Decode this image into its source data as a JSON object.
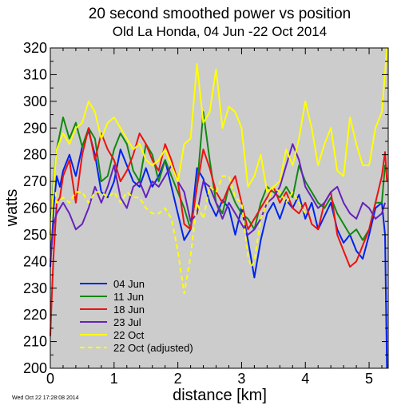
{
  "chart_data": {
    "type": "line",
    "title": "20 second smoothed power vs position",
    "subtitle": "Old La Honda, 04 Jun -22 Oct 2014",
    "xlabel": "distance [km]",
    "ylabel": "watts",
    "xlim": [
      0,
      5.3
    ],
    "ylim": [
      200,
      320
    ],
    "xticks": [
      "0",
      "1",
      "2",
      "3",
      "4",
      "5"
    ],
    "yticks": [
      "200",
      "210",
      "220",
      "230",
      "240",
      "250",
      "260",
      "270",
      "280",
      "290",
      "300",
      "310",
      "320"
    ],
    "background": "#cccccc",
    "grid": false,
    "legend_position": "bottom-left",
    "timestamp": "Wed Oct 22 17:28:08 2014",
    "series": [
      {
        "name": "04 Jun",
        "color": "#0022ee",
        "style": "solid",
        "x": [
          0,
          0.05,
          0.1,
          0.15,
          0.2,
          0.3,
          0.4,
          0.5,
          0.6,
          0.7,
          0.8,
          0.9,
          1.0,
          1.1,
          1.2,
          1.3,
          1.4,
          1.5,
          1.6,
          1.7,
          1.8,
          1.9,
          2.0,
          2.1,
          2.2,
          2.3,
          2.4,
          2.5,
          2.6,
          2.7,
          2.8,
          2.9,
          3.0,
          3.1,
          3.2,
          3.3,
          3.4,
          3.5,
          3.6,
          3.7,
          3.8,
          3.9,
          4.0,
          4.1,
          4.2,
          4.3,
          4.4,
          4.5,
          4.6,
          4.7,
          4.8,
          4.9,
          5.0,
          5.1,
          5.2,
          5.25,
          5.28
        ],
        "y": [
          238,
          260,
          272,
          268,
          274,
          280,
          272,
          283,
          289,
          280,
          266,
          264,
          270,
          282,
          276,
          270,
          268,
          275,
          268,
          272,
          278,
          268,
          258,
          248,
          252,
          275,
          271,
          262,
          257,
          263,
          260,
          250,
          260,
          248,
          234,
          248,
          258,
          262,
          256,
          263,
          260,
          265,
          256,
          262,
          252,
          257,
          262,
          252,
          247,
          250,
          244,
          241,
          250,
          260,
          262,
          250,
          200
        ]
      },
      {
        "name": "11 Jun",
        "color": "#118811",
        "style": "solid",
        "x": [
          0,
          0.05,
          0.1,
          0.2,
          0.3,
          0.4,
          0.5,
          0.6,
          0.7,
          0.8,
          0.9,
          1.0,
          1.1,
          1.2,
          1.3,
          1.4,
          1.5,
          1.6,
          1.7,
          1.8,
          1.9,
          2.0,
          2.1,
          2.2,
          2.3,
          2.4,
          2.5,
          2.6,
          2.7,
          2.8,
          2.9,
          3.0,
          3.1,
          3.2,
          3.3,
          3.4,
          3.5,
          3.6,
          3.7,
          3.8,
          3.9,
          4.0,
          4.1,
          4.2,
          4.3,
          4.4,
          4.5,
          4.6,
          4.7,
          4.8,
          4.9,
          5.0,
          5.1,
          5.2,
          5.25,
          5.28
        ],
        "y": [
          250,
          270,
          282,
          294,
          286,
          292,
          283,
          290,
          286,
          270,
          272,
          282,
          288,
          284,
          274,
          270,
          284,
          280,
          270,
          278,
          272,
          266,
          260,
          252,
          268,
          296,
          278,
          262,
          258,
          268,
          262,
          258,
          256,
          252,
          262,
          268,
          266,
          264,
          268,
          264,
          276,
          270,
          266,
          262,
          260,
          264,
          258,
          254,
          250,
          252,
          248,
          252,
          262,
          262,
          276,
          274
        ]
      },
      {
        "name": "18 Jun",
        "color": "#ee1111",
        "style": "solid",
        "x": [
          0,
          0.02,
          0.05,
          0.1,
          0.15,
          0.2,
          0.3,
          0.4,
          0.5,
          0.6,
          0.7,
          0.8,
          0.9,
          1.0,
          1.1,
          1.2,
          1.3,
          1.4,
          1.5,
          1.6,
          1.7,
          1.8,
          1.9,
          2.0,
          2.1,
          2.2,
          2.3,
          2.4,
          2.5,
          2.6,
          2.7,
          2.8,
          2.9,
          3.0,
          3.1,
          3.2,
          3.3,
          3.4,
          3.5,
          3.6,
          3.7,
          3.8,
          3.9,
          4.0,
          4.1,
          4.2,
          4.3,
          4.4,
          4.5,
          4.6,
          4.7,
          4.8,
          4.9,
          5.0,
          5.1,
          5.2,
          5.25,
          5.28
        ],
        "y": [
          212,
          225,
          242,
          262,
          264,
          272,
          278,
          262,
          280,
          290,
          278,
          288,
          282,
          278,
          270,
          274,
          280,
          288,
          284,
          278,
          274,
          284,
          278,
          270,
          254,
          252,
          268,
          282,
          275,
          266,
          262,
          268,
          272,
          262,
          252,
          256,
          260,
          264,
          268,
          262,
          266,
          260,
          258,
          262,
          254,
          252,
          262,
          266,
          250,
          244,
          238,
          240,
          246,
          252,
          262,
          272,
          281,
          270
        ]
      },
      {
        "name": "23 Jul",
        "color": "#6622bb",
        "style": "solid",
        "x": [
          0,
          0.05,
          0.1,
          0.2,
          0.3,
          0.4,
          0.5,
          0.6,
          0.7,
          0.8,
          0.9,
          1.0,
          1.1,
          1.2,
          1.3,
          1.4,
          1.5,
          1.6,
          1.7,
          1.8,
          1.9,
          2.0,
          2.1,
          2.2,
          2.3,
          2.4,
          2.5,
          2.6,
          2.7,
          2.8,
          2.9,
          3.0,
          3.1,
          3.2,
          3.3,
          3.4,
          3.5,
          3.6,
          3.7,
          3.8,
          3.9,
          4.0,
          4.1,
          4.2,
          4.3,
          4.4,
          4.5,
          4.6,
          4.7,
          4.8,
          4.9,
          5.0,
          5.1,
          5.2,
          5.25
        ],
        "y": [
          240,
          254,
          258,
          262,
          258,
          252,
          254,
          260,
          268,
          262,
          268,
          276,
          264,
          260,
          268,
          270,
          264,
          270,
          268,
          272,
          276,
          270,
          266,
          255,
          258,
          270,
          268,
          262,
          256,
          262,
          258,
          254,
          250,
          252,
          256,
          262,
          264,
          268,
          276,
          284,
          278,
          268,
          264,
          260,
          262,
          266,
          268,
          262,
          258,
          256,
          262,
          260,
          256,
          258,
          262
        ]
      },
      {
        "name": "22 Oct",
        "color": "#ffff00",
        "style": "solid",
        "x": [
          0,
          0.05,
          0.1,
          0.2,
          0.3,
          0.4,
          0.5,
          0.6,
          0.7,
          0.8,
          0.9,
          1.0,
          1.1,
          1.2,
          1.3,
          1.4,
          1.5,
          1.6,
          1.7,
          1.8,
          1.9,
          2.0,
          2.1,
          2.2,
          2.3,
          2.4,
          2.5,
          2.6,
          2.7,
          2.8,
          2.9,
          3.0,
          3.1,
          3.2,
          3.3,
          3.4,
          3.5,
          3.6,
          3.7,
          3.8,
          3.9,
          4.0,
          4.1,
          4.2,
          4.3,
          4.4,
          4.5,
          4.6,
          4.7,
          4.8,
          4.9,
          5.0,
          5.1,
          5.2,
          5.28
        ],
        "y": [
          248,
          268,
          282,
          288,
          284,
          290,
          292,
          300,
          296,
          286,
          292,
          294,
          290,
          286,
          282,
          284,
          278,
          276,
          278,
          282,
          276,
          270,
          284,
          286,
          314,
          292,
          296,
          312,
          290,
          298,
          296,
          290,
          268,
          272,
          280,
          266,
          268,
          270,
          282,
          276,
          286,
          300,
          290,
          276,
          284,
          290,
          274,
          272,
          294,
          284,
          276,
          276,
          290,
          296,
          320
        ]
      },
      {
        "name": "22 Oct (adjusted)",
        "color": "#ffff00",
        "style": "dashed",
        "x": [
          0.08,
          0.1,
          0.2,
          0.3,
          0.4,
          0.5,
          0.6,
          0.7,
          0.8,
          0.9,
          1.0,
          1.1,
          1.2,
          1.3,
          1.4,
          1.5,
          1.6,
          1.7,
          1.8,
          1.9,
          1.95,
          2.0,
          2.05,
          2.1,
          2.2,
          2.3,
          2.4,
          2.5,
          2.6,
          2.7,
          2.8,
          2.9,
          3.0,
          3.05,
          3.1,
          3.15,
          3.2,
          3.25,
          3.3,
          3.4,
          3.5,
          3.6,
          3.7,
          3.8,
          3.9,
          4.0
        ],
        "y": [
          266,
          262,
          264,
          262,
          266,
          266,
          262,
          266,
          266,
          264,
          266,
          262,
          266,
          264,
          264,
          260,
          258,
          258,
          260,
          256,
          250,
          244,
          236,
          228,
          242,
          262,
          256,
          268,
          266,
          272,
          272,
          264,
          262,
          252,
          242,
          238,
          240,
          248,
          256,
          262,
          268,
          266,
          262,
          266,
          262,
          258
        ]
      }
    ]
  }
}
